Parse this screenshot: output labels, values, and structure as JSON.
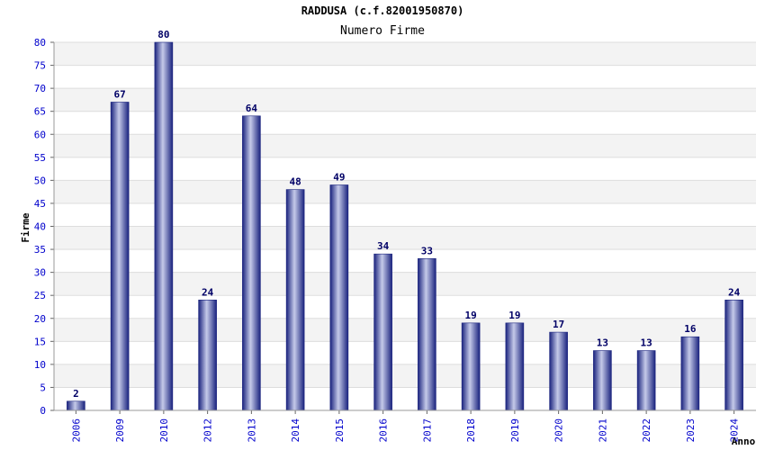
{
  "chart_data": {
    "type": "bar",
    "title": "RADDUSA (c.f.82001950870)",
    "subtitle": "Numero Firme",
    "xlabel": "Anno",
    "ylabel": "Firme",
    "ylim": [
      0,
      80
    ],
    "ytick_step": 5,
    "grid": true,
    "categories": [
      "2006",
      "2009",
      "2010",
      "2012",
      "2013",
      "2014",
      "2015",
      "2016",
      "2017",
      "2018",
      "2019",
      "2020",
      "2021",
      "2022",
      "2023",
      "2024"
    ],
    "values": [
      2,
      67,
      80,
      24,
      64,
      48,
      49,
      34,
      33,
      19,
      19,
      17,
      13,
      13,
      16,
      24
    ]
  },
  "colors": {
    "bar_dark": "#1a237e",
    "bar_light": "#c5cae9",
    "bar_mid": "#3f51b5",
    "axis_text": "#0000cc",
    "value_label": "#000066",
    "title_text": "#000000",
    "grid_line": "#dddddd",
    "band_fill": "#f3f3f3"
  }
}
